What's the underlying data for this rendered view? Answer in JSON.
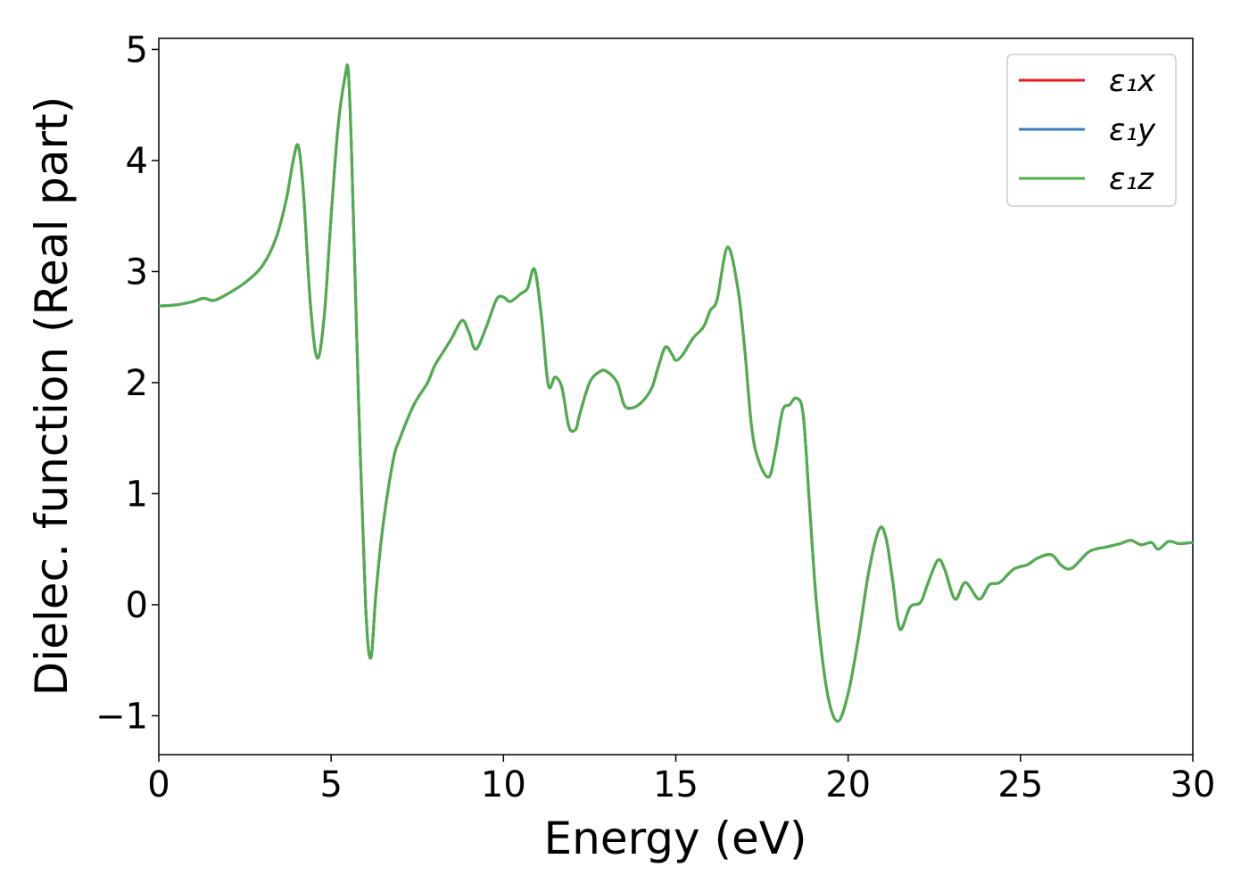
{
  "chart_data": {
    "type": "line",
    "title": "",
    "xlabel": "Energy (eV)",
    "ylabel": "Dielec. function (Real part)",
    "xlim": [
      0,
      30
    ],
    "ylim": [
      -1.35,
      5.1
    ],
    "xticks": [
      0,
      5,
      10,
      15,
      20,
      25,
      30
    ],
    "xtick_labels": [
      "0",
      "5",
      "10",
      "15",
      "20",
      "25",
      "30"
    ],
    "yticks": [
      -1,
      0,
      1,
      2,
      3,
      4,
      5
    ],
    "ytick_labels": [
      "−1",
      "0",
      "1",
      "2",
      "3",
      "4",
      "5"
    ],
    "grid": false,
    "legend_position": "top-right",
    "x": [
      0,
      0.5,
      1.0,
      1.3,
      1.6,
      2.0,
      2.5,
      3.0,
      3.4,
      3.7,
      3.9,
      4.05,
      4.2,
      4.4,
      4.6,
      4.8,
      5.0,
      5.2,
      5.4,
      5.5,
      5.6,
      5.8,
      6.0,
      6.15,
      6.3,
      6.5,
      6.8,
      7.0,
      7.4,
      7.8,
      8.0,
      8.3,
      8.5,
      8.8,
      9.0,
      9.2,
      9.5,
      9.8,
      10.0,
      10.2,
      10.5,
      10.7,
      10.9,
      11.1,
      11.3,
      11.5,
      11.7,
      11.9,
      12.1,
      12.2,
      12.5,
      12.8,
      13.0,
      13.3,
      13.5,
      13.7,
      14.0,
      14.3,
      14.5,
      14.7,
      14.9,
      15.0,
      15.2,
      15.5,
      15.8,
      16.0,
      16.2,
      16.5,
      16.8,
      17.0,
      17.2,
      17.4,
      17.7,
      17.9,
      18.1,
      18.3,
      18.5,
      18.7,
      18.9,
      19.1,
      19.4,
      19.7,
      20.0,
      20.3,
      20.6,
      20.9,
      21.1,
      21.3,
      21.5,
      21.8,
      22.1,
      22.3,
      22.6,
      22.8,
      23.1,
      23.4,
      23.8,
      24.1,
      24.4,
      24.8,
      25.2,
      25.5,
      25.9,
      26.2,
      26.5,
      27.0,
      27.5,
      27.9,
      28.2,
      28.5,
      28.8,
      29.0,
      29.3,
      29.6,
      30.0
    ],
    "series": [
      {
        "name": "ε₁x",
        "color": "#e41a1c",
        "y": [
          2.69,
          2.7,
          2.73,
          2.76,
          2.74,
          2.8,
          2.9,
          3.05,
          3.3,
          3.65,
          4.0,
          4.13,
          3.7,
          2.7,
          2.22,
          2.6,
          3.5,
          4.3,
          4.75,
          4.8,
          4.0,
          1.8,
          0.0,
          -0.48,
          0.1,
          0.7,
          1.3,
          1.5,
          1.8,
          2.0,
          2.15,
          2.3,
          2.4,
          2.56,
          2.45,
          2.3,
          2.5,
          2.75,
          2.77,
          2.73,
          2.8,
          2.85,
          3.02,
          2.6,
          1.98,
          2.05,
          1.95,
          1.6,
          1.58,
          1.7,
          2.0,
          2.1,
          2.1,
          2.0,
          1.8,
          1.77,
          1.82,
          1.95,
          2.15,
          2.32,
          2.25,
          2.2,
          2.25,
          2.4,
          2.5,
          2.65,
          2.75,
          3.22,
          2.85,
          2.3,
          1.6,
          1.3,
          1.15,
          1.4,
          1.75,
          1.8,
          1.86,
          1.7,
          0.8,
          -0.05,
          -0.8,
          -1.05,
          -0.8,
          -0.3,
          0.3,
          0.68,
          0.6,
          0.2,
          -0.22,
          -0.02,
          0.02,
          0.18,
          0.4,
          0.32,
          0.05,
          0.2,
          0.05,
          0.18,
          0.2,
          0.32,
          0.36,
          0.42,
          0.45,
          0.35,
          0.33,
          0.48,
          0.52,
          0.55,
          0.58,
          0.54,
          0.56,
          0.5,
          0.57,
          0.55,
          0.56
        ]
      },
      {
        "name": "ε₁y",
        "color": "#377eb8",
        "y": [
          2.69,
          2.7,
          2.73,
          2.76,
          2.74,
          2.8,
          2.9,
          3.05,
          3.3,
          3.65,
          4.0,
          4.13,
          3.7,
          2.7,
          2.22,
          2.6,
          3.5,
          4.3,
          4.75,
          4.8,
          4.0,
          1.8,
          0.0,
          -0.48,
          0.1,
          0.7,
          1.3,
          1.5,
          1.8,
          2.0,
          2.15,
          2.3,
          2.4,
          2.56,
          2.45,
          2.3,
          2.5,
          2.75,
          2.77,
          2.73,
          2.8,
          2.85,
          3.02,
          2.6,
          1.98,
          2.05,
          1.95,
          1.6,
          1.58,
          1.7,
          2.0,
          2.1,
          2.1,
          2.0,
          1.8,
          1.77,
          1.82,
          1.95,
          2.15,
          2.32,
          2.25,
          2.2,
          2.25,
          2.4,
          2.5,
          2.65,
          2.75,
          3.22,
          2.85,
          2.3,
          1.6,
          1.3,
          1.15,
          1.4,
          1.75,
          1.8,
          1.86,
          1.7,
          0.8,
          -0.05,
          -0.8,
          -1.05,
          -0.8,
          -0.3,
          0.3,
          0.68,
          0.6,
          0.2,
          -0.22,
          -0.02,
          0.02,
          0.18,
          0.4,
          0.32,
          0.05,
          0.2,
          0.05,
          0.18,
          0.2,
          0.32,
          0.36,
          0.42,
          0.45,
          0.35,
          0.33,
          0.48,
          0.52,
          0.55,
          0.58,
          0.54,
          0.56,
          0.5,
          0.57,
          0.55,
          0.56
        ]
      },
      {
        "name": "ε₁z",
        "color": "#4daf4a",
        "y": [
          2.69,
          2.7,
          2.73,
          2.76,
          2.74,
          2.8,
          2.9,
          3.05,
          3.3,
          3.65,
          4.0,
          4.13,
          3.7,
          2.7,
          2.22,
          2.6,
          3.5,
          4.3,
          4.75,
          4.8,
          4.0,
          1.8,
          0.0,
          -0.48,
          0.1,
          0.7,
          1.3,
          1.5,
          1.8,
          2.0,
          2.15,
          2.3,
          2.4,
          2.56,
          2.45,
          2.3,
          2.5,
          2.75,
          2.77,
          2.73,
          2.8,
          2.85,
          3.02,
          2.6,
          1.98,
          2.05,
          1.95,
          1.6,
          1.58,
          1.7,
          2.0,
          2.1,
          2.1,
          2.0,
          1.8,
          1.77,
          1.82,
          1.95,
          2.15,
          2.32,
          2.25,
          2.2,
          2.25,
          2.4,
          2.5,
          2.65,
          2.75,
          3.22,
          2.85,
          2.3,
          1.6,
          1.3,
          1.15,
          1.4,
          1.75,
          1.8,
          1.86,
          1.7,
          0.8,
          -0.05,
          -0.8,
          -1.05,
          -0.8,
          -0.3,
          0.3,
          0.68,
          0.6,
          0.2,
          -0.22,
          -0.02,
          0.02,
          0.18,
          0.4,
          0.32,
          0.05,
          0.2,
          0.05,
          0.18,
          0.2,
          0.32,
          0.36,
          0.42,
          0.45,
          0.35,
          0.33,
          0.48,
          0.52,
          0.55,
          0.58,
          0.54,
          0.56,
          0.5,
          0.57,
          0.55,
          0.56
        ]
      }
    ]
  }
}
